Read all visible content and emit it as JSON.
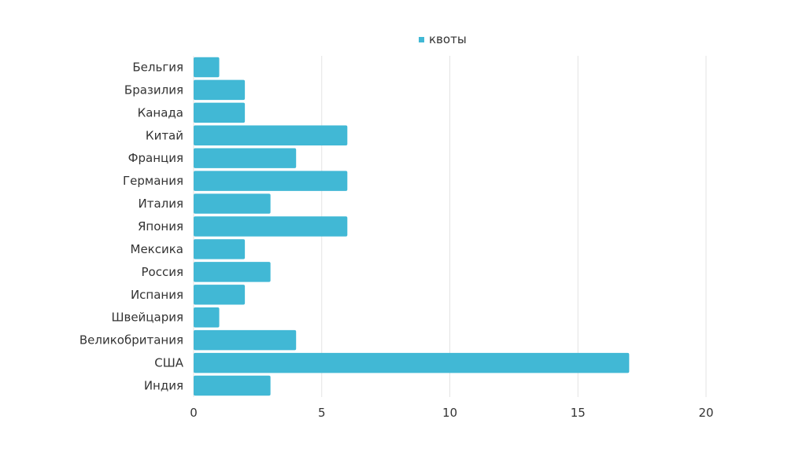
{
  "chart_data": {
    "type": "bar",
    "orientation": "horizontal",
    "categories": [
      "Бельгия",
      "Бразилия",
      "Канада",
      "Китай",
      "Франция",
      "Германия",
      "Италия",
      "Япония",
      "Мексика",
      "Россия",
      "Испания",
      "Швейцария",
      "Великобритания",
      "США",
      "Индия"
    ],
    "series": [
      {
        "name": "квоты",
        "values": [
          1,
          2,
          2,
          6,
          4,
          6,
          3,
          6,
          2,
          3,
          2,
          1,
          4,
          17,
          3
        ],
        "color": "#41b8d5"
      }
    ],
    "x_ticks": [
      "0",
      "5",
      "10",
      "15",
      "20"
    ],
    "xlim": [
      0,
      20
    ],
    "grid": "vertical",
    "legend_position": "top-center"
  }
}
